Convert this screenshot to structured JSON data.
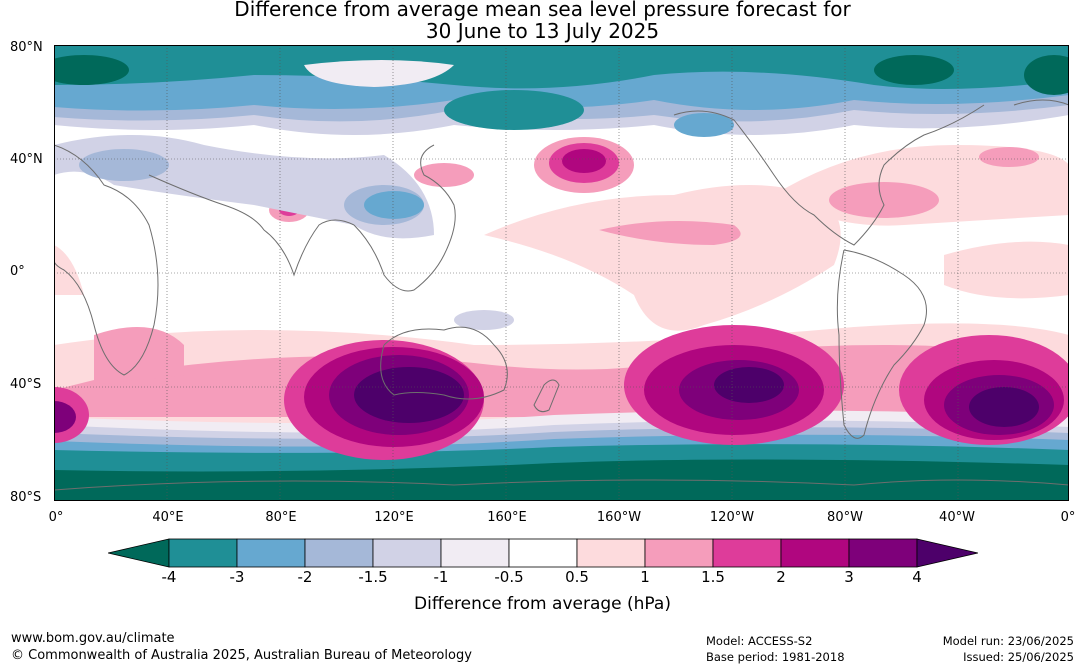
{
  "title_line1": "Difference from average mean sea level pressure forecast for",
  "title_line2": "30 June to 13 July 2025",
  "lat_labels": [
    "80°N",
    "40°N",
    "0°",
    "40°S",
    "80°S"
  ],
  "lon_labels": [
    "0°",
    "40°E",
    "80°E",
    "120°E",
    "160°E",
    "160°W",
    "120°W",
    "80°W",
    "40°W",
    "0°"
  ],
  "colorbar": {
    "ticks": [
      "-4",
      "-3",
      "-2",
      "-1.5",
      "-1",
      "-0.5",
      "0.5",
      "1",
      "1.5",
      "2",
      "3",
      "4"
    ],
    "colors": [
      "#00695a",
      "#1f8f96",
      "#66a8d0",
      "#a5b8d8",
      "#d1d2e6",
      "#f1ecf3",
      "#ffffff",
      "#fddbdd",
      "#f59dbb",
      "#de3c9a",
      "#b0067f",
      "#7e007a",
      "#4d006a"
    ],
    "label": "Difference from average (hPa)"
  },
  "footer": {
    "website": "www.bom.gov.au/climate",
    "copyright": "© Commonwealth of Australia 2025, Australian Bureau of Meteorology",
    "model": "Model: ACCESS-S2",
    "base_period": "Base period: 1981-2018",
    "model_run": "Model run: 23/06/2025",
    "issued": "Issued: 25/06/2025"
  }
}
